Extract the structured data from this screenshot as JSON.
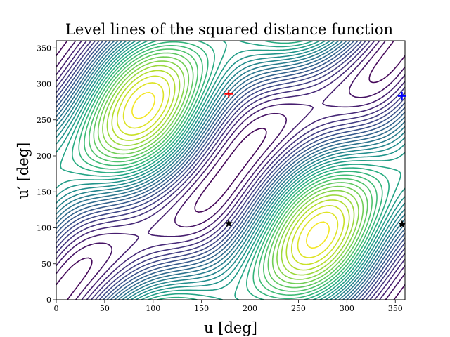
{
  "chart_data": {
    "type": "contour",
    "title": "Level lines of the squared distance function",
    "xlabel": "u [deg]",
    "ylabel": "u′ [deg]",
    "xlim": [
      0,
      360
    ],
    "ylim": [
      0,
      360
    ],
    "xticks": [
      0,
      50,
      100,
      150,
      200,
      250,
      300,
      350
    ],
    "yticks": [
      0,
      50,
      100,
      150,
      200,
      250,
      300,
      350
    ],
    "grid": false,
    "colormap": "viridis",
    "num_levels": 30,
    "function": {
      "form": "(1-a^2)/2*(cos u - cos u')^2 + (sin u - a sin u')^2",
      "a": 0.55
    },
    "markers": [
      {
        "kind": "plus",
        "x": 178,
        "y": 286,
        "color": "#ff0000"
      },
      {
        "kind": "plus",
        "x": 357,
        "y": 283,
        "color": "#0000ff"
      },
      {
        "kind": "star",
        "x": 178,
        "y": 106,
        "color": "#000000"
      },
      {
        "kind": "star",
        "x": 357,
        "y": 105,
        "color": "#000000"
      }
    ]
  }
}
